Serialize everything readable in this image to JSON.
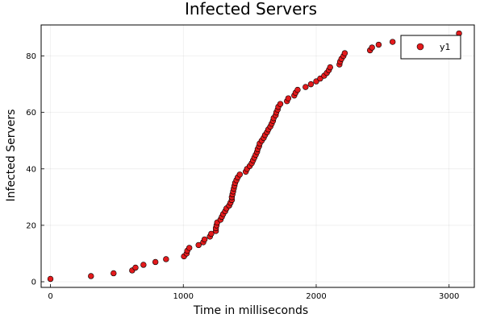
{
  "chart_data": {
    "type": "scatter",
    "title": "Infected Servers",
    "xlabel": "Time in milliseconds",
    "ylabel": "Infected Servers",
    "xlim": [
      -70,
      3190
    ],
    "ylim": [
      -2,
      91
    ],
    "xticks": [
      0,
      1000,
      2000,
      3000
    ],
    "yticks": [
      0,
      20,
      40,
      60,
      80
    ],
    "grid": true,
    "legend": {
      "position": "top-right"
    },
    "series": [
      {
        "name": "y1",
        "color": "#e31a1c",
        "points": [
          [
            0,
            1
          ],
          [
            305,
            2
          ],
          [
            475,
            3
          ],
          [
            615,
            4
          ],
          [
            640,
            5
          ],
          [
            700,
            6
          ],
          [
            790,
            7
          ],
          [
            870,
            8
          ],
          [
            1005,
            9
          ],
          [
            1025,
            10
          ],
          [
            1030,
            11
          ],
          [
            1045,
            12
          ],
          [
            1115,
            13
          ],
          [
            1150,
            14
          ],
          [
            1160,
            15
          ],
          [
            1200,
            16
          ],
          [
            1210,
            17
          ],
          [
            1245,
            18
          ],
          [
            1245,
            19
          ],
          [
            1250,
            20
          ],
          [
            1255,
            21
          ],
          [
            1280,
            22
          ],
          [
            1290,
            23
          ],
          [
            1300,
            24
          ],
          [
            1315,
            25
          ],
          [
            1325,
            26
          ],
          [
            1345,
            27
          ],
          [
            1355,
            28
          ],
          [
            1365,
            29
          ],
          [
            1365,
            30
          ],
          [
            1370,
            31
          ],
          [
            1375,
            32
          ],
          [
            1380,
            33
          ],
          [
            1385,
            34
          ],
          [
            1390,
            35
          ],
          [
            1400,
            36
          ],
          [
            1410,
            37
          ],
          [
            1425,
            38
          ],
          [
            1470,
            39
          ],
          [
            1480,
            40
          ],
          [
            1500,
            41
          ],
          [
            1515,
            42
          ],
          [
            1525,
            43
          ],
          [
            1535,
            44
          ],
          [
            1545,
            45
          ],
          [
            1555,
            46
          ],
          [
            1560,
            47
          ],
          [
            1570,
            48
          ],
          [
            1575,
            49
          ],
          [
            1590,
            50
          ],
          [
            1605,
            51
          ],
          [
            1615,
            52
          ],
          [
            1630,
            53
          ],
          [
            1640,
            54
          ],
          [
            1655,
            55
          ],
          [
            1665,
            56
          ],
          [
            1675,
            57
          ],
          [
            1680,
            58
          ],
          [
            1695,
            59
          ],
          [
            1700,
            60
          ],
          [
            1710,
            61
          ],
          [
            1715,
            62
          ],
          [
            1730,
            63
          ],
          [
            1780,
            64
          ],
          [
            1790,
            65
          ],
          [
            1835,
            66
          ],
          [
            1845,
            67
          ],
          [
            1860,
            68
          ],
          [
            1920,
            69
          ],
          [
            1960,
            70
          ],
          [
            2000,
            71
          ],
          [
            2030,
            72
          ],
          [
            2060,
            73
          ],
          [
            2080,
            74
          ],
          [
            2095,
            75
          ],
          [
            2105,
            76
          ],
          [
            2175,
            77
          ],
          [
            2180,
            78
          ],
          [
            2190,
            79
          ],
          [
            2205,
            80
          ],
          [
            2215,
            81
          ],
          [
            2405,
            82
          ],
          [
            2420,
            83
          ],
          [
            2470,
            84
          ],
          [
            2575,
            85
          ],
          [
            3075,
            88
          ]
        ]
      }
    ]
  }
}
